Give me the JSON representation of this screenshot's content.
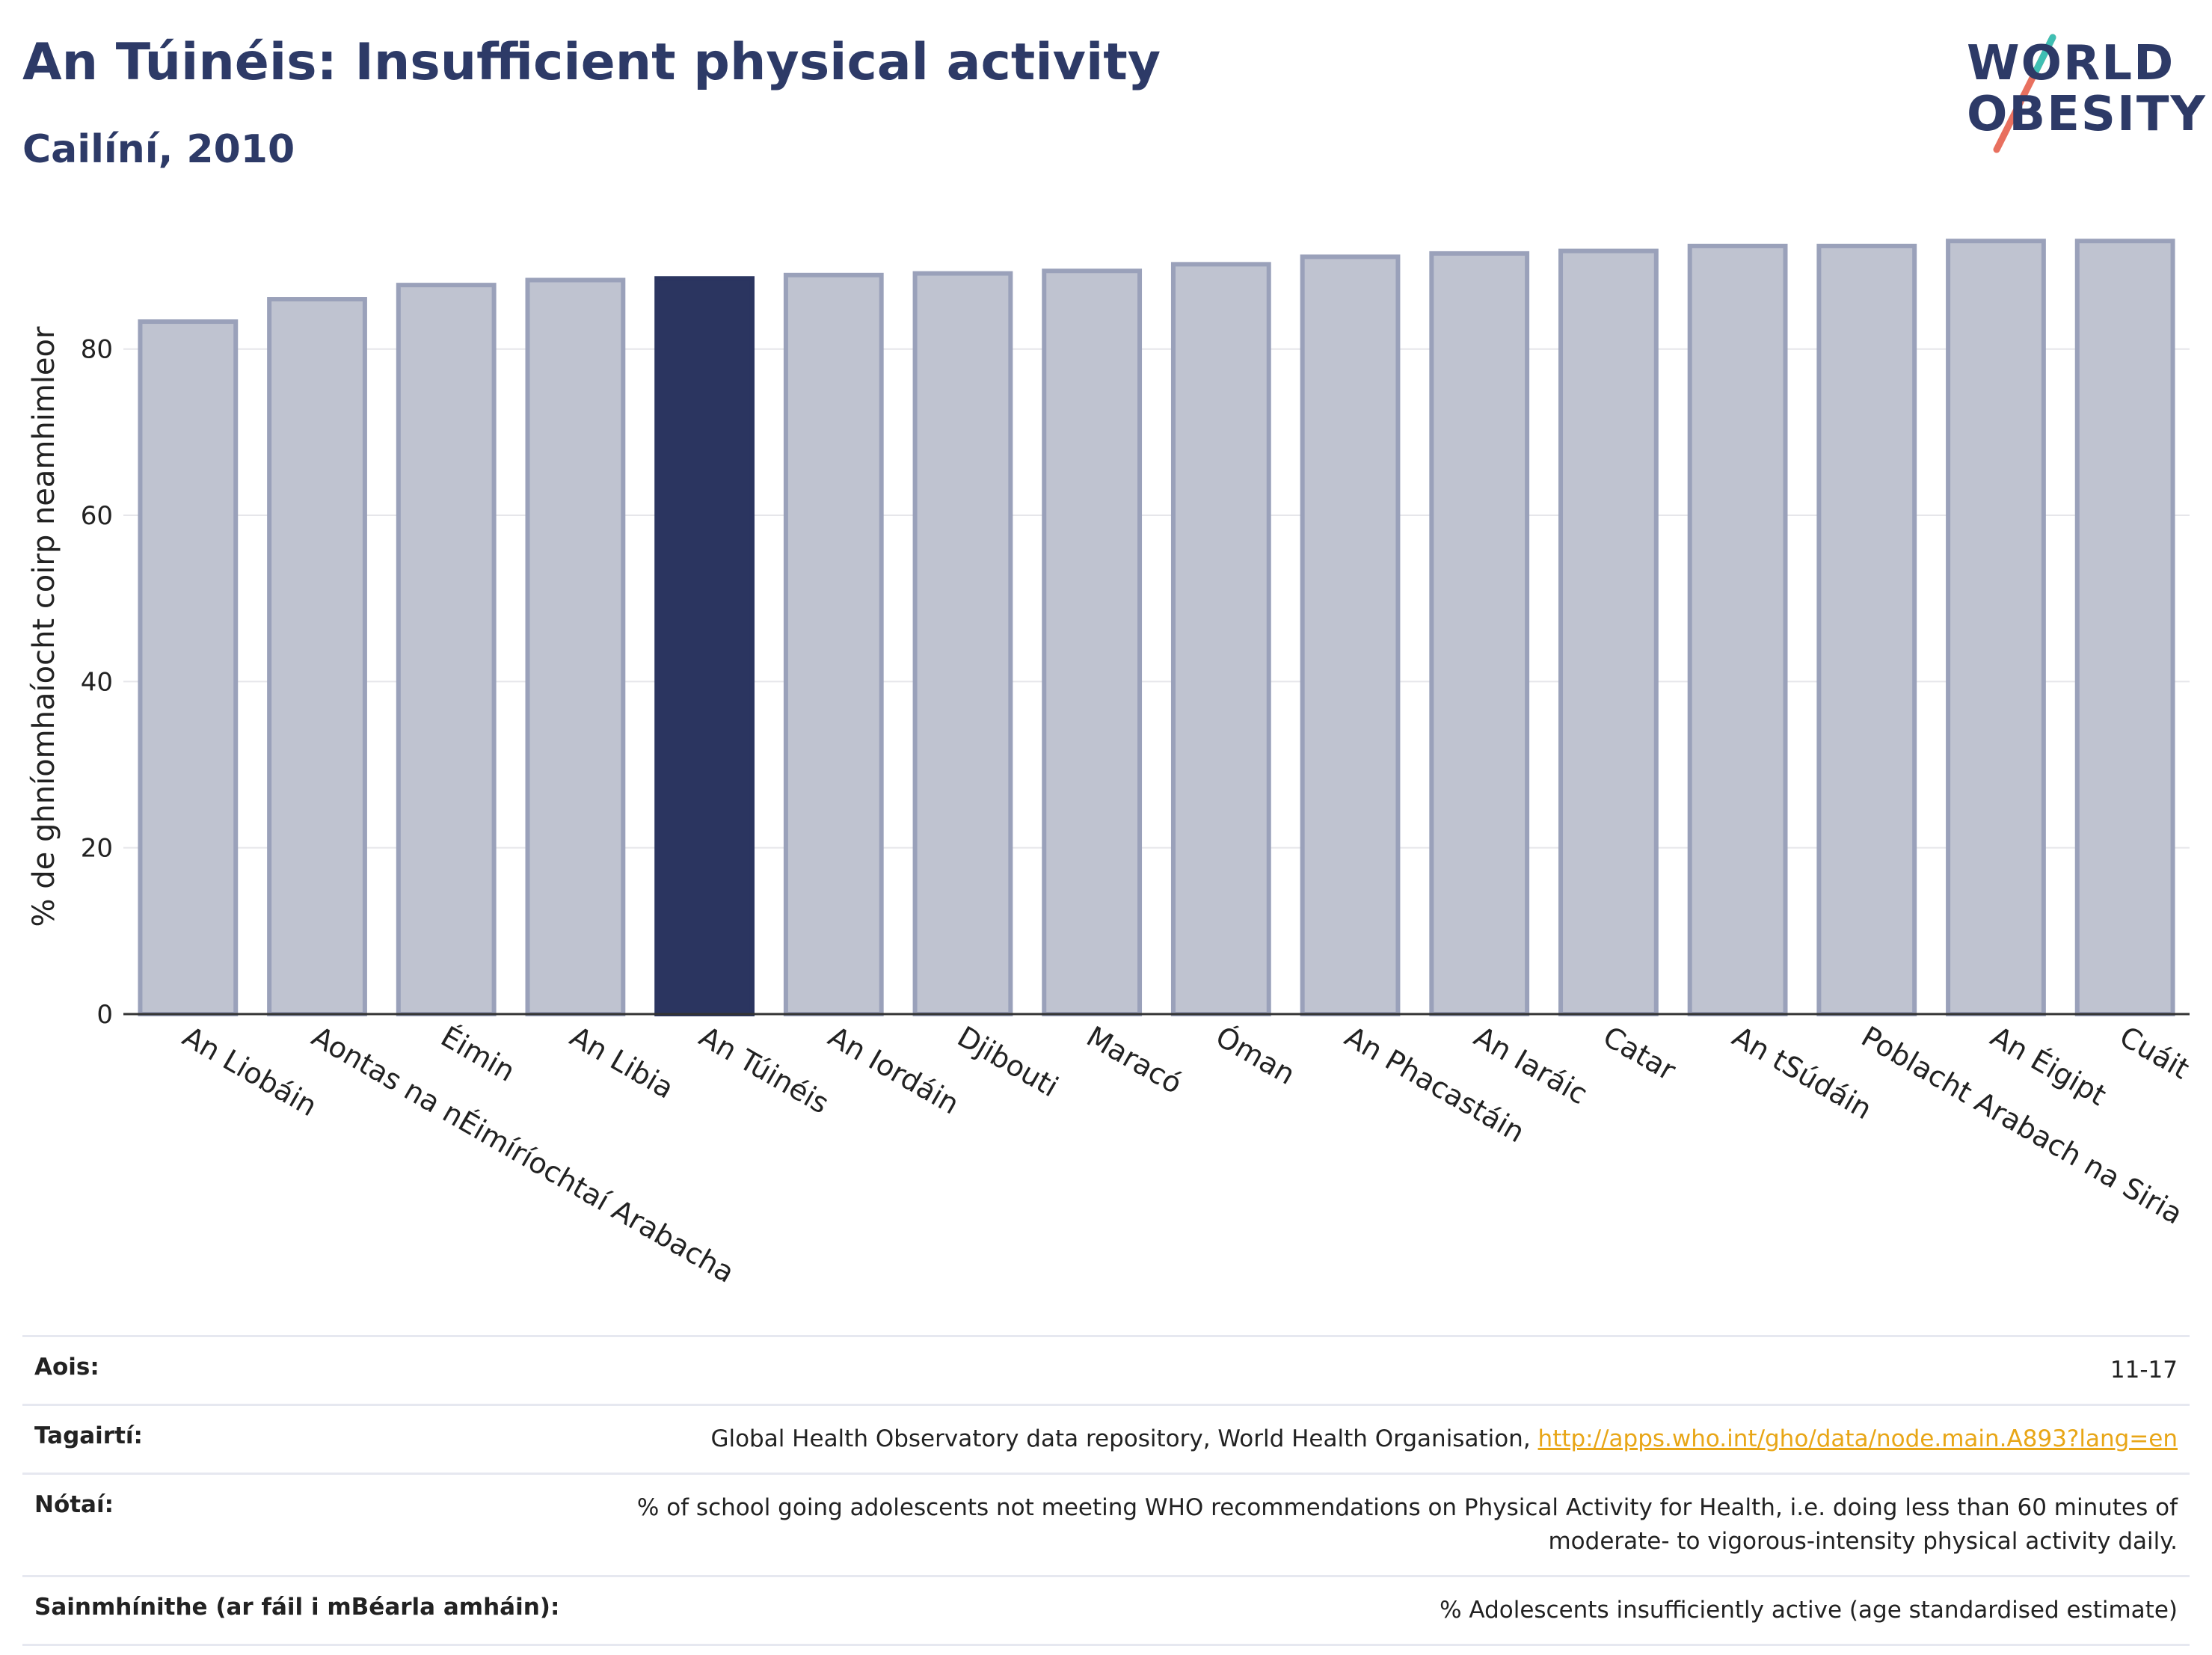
{
  "header": {
    "title": "An Túinéis: Insufficient physical activity",
    "subtitle": "Cailíní, 2010"
  },
  "logo": {
    "line1": "WORLD",
    "line2": "OBESITY"
  },
  "colors": {
    "highlight_bar": "#2b3560",
    "other_bar": "#bfc3d0",
    "bar_outline": "#9aa1ba",
    "title": "#2d3a67",
    "link": "#e8a617"
  },
  "chart_data": {
    "type": "bar",
    "title": "An Túinéis: Insufficient physical activity",
    "subtitle": "Cailíní, 2010",
    "xlabel": "",
    "ylabel": "% de ghníomhaíocht coirp neamhimleor",
    "ylim": [
      0,
      95
    ],
    "yticks": [
      0,
      20,
      40,
      60,
      80
    ],
    "grid": true,
    "highlight": "An Túinéis",
    "categories": [
      "An Liobáin",
      "Aontas na nÉimíríochtaí Arabacha",
      "Éimin",
      "An Libia",
      "An Túinéis",
      "An Iordáin",
      "Djibouti",
      "Maracó",
      "Óman",
      "An Phacastáin",
      "An Iaráic",
      "Catar",
      "An tSúdáin",
      "Poblacht Arabach na Siria",
      "An Éigipt",
      "Cuáit"
    ],
    "values": [
      83.3,
      86.0,
      87.7,
      88.3,
      88.5,
      88.9,
      89.1,
      89.4,
      90.2,
      91.1,
      91.5,
      91.8,
      92.4,
      92.4,
      93.0,
      93.0
    ]
  },
  "meta": [
    {
      "key": "Aois:",
      "value": "11-17"
    },
    {
      "key": "Tagairtí:",
      "value": "Global Health Observatory data repository, World Health Organisation, ",
      "link": "http://apps.who.int/gho/data/node.main.A893?lang=en"
    },
    {
      "key": "Nótaí:",
      "value": "% of school going adolescents not meeting WHO recommendations on Physical Activity for Health, i.e. doing less than 60 minutes of",
      "value2": "moderate- to vigorous-intensity physical activity daily."
    },
    {
      "key": "Sainmhínithe (ar fáil i mBéarla amháin):",
      "value": "% Adolescents insufficiently active (age standardised estimate)"
    }
  ]
}
